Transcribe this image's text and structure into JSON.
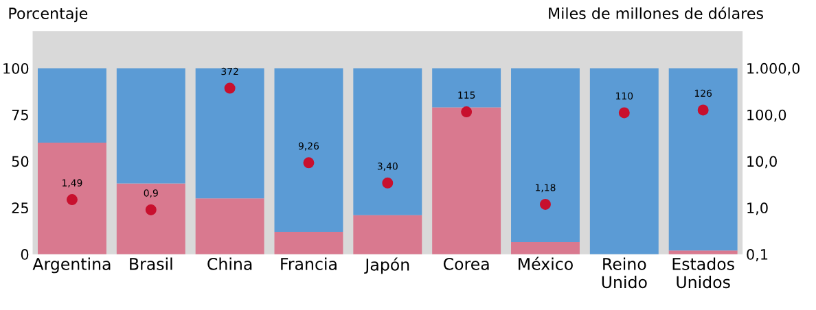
{
  "chart_data": {
    "type": "bar",
    "stacked": true,
    "ylabel": "Porcentaje",
    "y2label": "Miles de millones de dólares",
    "categories": [
      "Argentina",
      "Brasil",
      "China",
      "Francia",
      "Japón",
      "Corea",
      "México",
      "Reino\nUnido",
      "Estados\nUnidos"
    ],
    "series": [
      {
        "color": "#d9798f",
        "values": [
          60,
          38,
          30,
          12,
          21,
          79,
          6.5,
          0,
          2
        ]
      },
      {
        "color": "#5b9bd5",
        "values": [
          40,
          62,
          70,
          88,
          79,
          21,
          93.5,
          100,
          98
        ]
      },
      {
        "type": "scatter",
        "axis": "y2",
        "color": "#c8102e",
        "marker": "circle",
        "values": [
          1.49,
          0.9,
          372,
          9.26,
          3.4,
          115,
          1.18,
          110,
          126
        ],
        "value_labels": [
          "1,49",
          "0,9",
          "372",
          "9,26",
          "3,40",
          "115",
          "1,18",
          "110",
          "126"
        ]
      }
    ],
    "ylim": [
      0,
      120
    ],
    "yticks": [
      0,
      25,
      50,
      75,
      100
    ],
    "log": "y2",
    "y2lim": [
      0.1,
      6300
    ],
    "y2ticks": [
      {
        "value": 0.1,
        "label": "0,1"
      },
      {
        "value": 1,
        "label": "1,0"
      },
      {
        "value": 10,
        "label": "10,0"
      },
      {
        "value": 100,
        "label": "100,0"
      },
      {
        "value": 1000,
        "label": "1.000,0"
      }
    ],
    "legend": false
  }
}
